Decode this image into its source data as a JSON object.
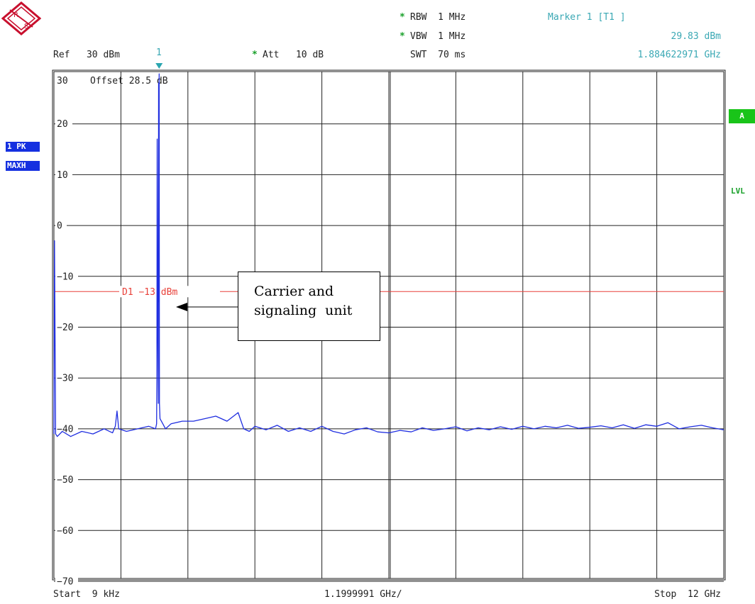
{
  "header": {
    "rbw": "RBW  1 MHz",
    "vbw": "VBW  1 MHz",
    "swt": "SWT  70 ms",
    "ref": "Ref   30 dBm",
    "att": "Att   10 dB",
    "marker_title": "Marker 1 [T1 ]",
    "marker_level": "29.83 dBm",
    "marker_freq": "1.884622971 GHz",
    "marker_number": "1"
  },
  "side": {
    "trace_mode_1": "1 PK",
    "trace_mode_2": "MAXH",
    "a_tag": "A",
    "lvl_tag": "LVL"
  },
  "footer": {
    "start": "Start  9 kHz",
    "span_per_div": "1.1999991 GHz/",
    "stop": "Stop  12 GHz"
  },
  "callout": {
    "line1": "Carrier and",
    "line2": "signaling  unit"
  },
  "colors": {
    "trace": "#1f2ee0",
    "display_line": "#e8413a",
    "marker": "#2aa6b0",
    "grid": "#222222",
    "a_badge": "#19c419"
  },
  "chart_data": {
    "type": "line",
    "title": "",
    "xlabel": "",
    "ylabel": "",
    "x_unit": "GHz",
    "y_unit": "dBm",
    "xlim": [
      9e-06,
      12
    ],
    "ylim": [
      -75,
      30
    ],
    "ref_level_label": "30",
    "offset_label": "Offset   28.5 dB",
    "y_ticks": [
      {
        "value": 20,
        "label": "20"
      },
      {
        "value": 10,
        "label": "10"
      },
      {
        "value": 0,
        "label": "0"
      },
      {
        "value": -10,
        "label": "-10"
      },
      {
        "value": -20,
        "label": "-20"
      },
      {
        "value": -30,
        "label": "-30"
      },
      {
        "value": -40,
        "label": "-40"
      },
      {
        "value": -50,
        "label": "-50"
      },
      {
        "value": -60,
        "label": "-60"
      },
      {
        "value": -70,
        "label": "-70"
      }
    ],
    "display_line": {
      "label": "D1  -13 dBm",
      "value": -13
    },
    "marker": {
      "label": "1",
      "x": 1.884622971,
      "y": 29.83
    },
    "grid": true,
    "series": [
      {
        "x": [
          9e-06,
          0.01,
          0.03,
          0.06,
          0.15,
          0.3,
          0.5,
          0.7,
          0.9,
          1.05,
          1.1,
          1.13,
          1.16,
          1.3,
          1.5,
          1.7,
          1.82,
          1.84,
          1.845,
          1.85,
          1.86,
          1.87,
          1.875,
          1.88,
          1.8846,
          1.89,
          1.9,
          1.95,
          2.0,
          2.1,
          2.3,
          2.5,
          2.7,
          2.9,
          3.1,
          3.3,
          3.4,
          3.5,
          3.6,
          3.8,
          4.0,
          4.2,
          4.4,
          4.6,
          4.8,
          5.0,
          5.2,
          5.4,
          5.6,
          5.8,
          6.0,
          6.2,
          6.4,
          6.6,
          6.8,
          7.0,
          7.2,
          7.4,
          7.6,
          7.8,
          8.0,
          8.2,
          8.4,
          8.6,
          8.8,
          9.0,
          9.2,
          9.4,
          9.6,
          9.8,
          10.0,
          10.2,
          10.4,
          10.6,
          10.8,
          11.0,
          11.2,
          11.4,
          11.6,
          11.8,
          12.0
        ],
        "y": [
          -41,
          -3,
          -41,
          -41.5,
          -40.5,
          -41.5,
          -40.5,
          -41,
          -40,
          -40.8,
          -39.5,
          -36.5,
          -40,
          -40.5,
          -40,
          -39.5,
          -40,
          -39,
          -30,
          17,
          -20,
          -35,
          28,
          -15,
          29.83,
          -35,
          -38,
          -39,
          -40,
          -39,
          -38.5,
          -38.5,
          -38,
          -37.5,
          -38.5,
          -36.8,
          -40,
          -40.5,
          -39.5,
          -40.2,
          -39.3,
          -40.5,
          -39.8,
          -40.5,
          -39.5,
          -40.5,
          -41,
          -40.2,
          -39.8,
          -40.6,
          -40.8,
          -40.3,
          -40.6,
          -39.8,
          -40.3,
          -40,
          -39.6,
          -40.4,
          -39.8,
          -40.2,
          -39.6,
          -40.1,
          -39.5,
          -40,
          -39.5,
          -39.8,
          -39.3,
          -39.9,
          -39.7,
          -39.4,
          -39.8,
          -39.2,
          -39.9,
          -39.2,
          -39.5,
          -38.8,
          -40,
          -39.6,
          -39.3,
          -39.8,
          -40.2
        ]
      }
    ]
  }
}
